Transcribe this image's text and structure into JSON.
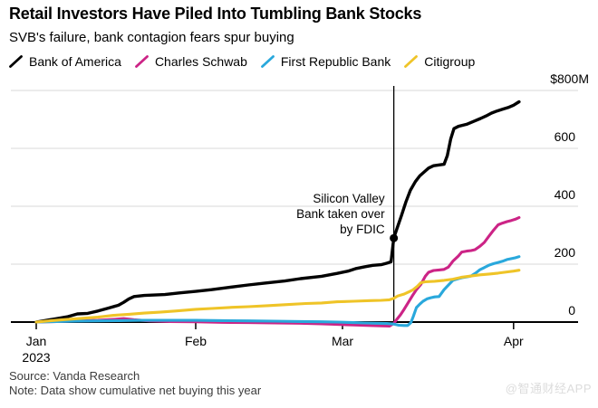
{
  "header": {
    "title": "Retail Investors Have Piled Into Tumbling Bank Stocks",
    "subtitle": "SVB's failure, bank contagion fears spur buying"
  },
  "legend": [
    {
      "label": "Bank of America",
      "color": "#000000"
    },
    {
      "label": "Charles Schwab",
      "color": "#cc2486"
    },
    {
      "label": "First Republic Bank",
      "color": "#29a8dc"
    },
    {
      "label": "Citigroup",
      "color": "#efc428"
    }
  ],
  "chart_data": {
    "type": "line",
    "title": "Retail Investors Have Piled Into Tumbling Bank Stocks",
    "subtitle": "SVB's failure, bank contagion fears spur buying",
    "unit": "USD millions, cumulative net buying",
    "x_unit": "days since Jan 1, 2023",
    "ylim": [
      -20,
      800
    ],
    "grid": "horizontal",
    "legend_position": "top",
    "y_axis": {
      "ticks": [
        {
          "value": 800,
          "label": "$800M"
        },
        {
          "value": 600,
          "label": "600"
        },
        {
          "value": 400,
          "label": "400"
        },
        {
          "value": 200,
          "label": "200"
        },
        {
          "value": 0,
          "label": "0"
        }
      ]
    },
    "x_axis": {
      "ticks": [
        {
          "label": "Jan",
          "day": 0
        },
        {
          "label": "Feb",
          "day": 31
        },
        {
          "label": "Mar",
          "day": 59
        },
        {
          "label": "Apr",
          "day": 90
        }
      ],
      "year_label": "2023"
    },
    "annotation": {
      "lines": [
        "Silicon Valley",
        "Bank taken over",
        "by FDIC"
      ],
      "event": "Silicon Valley Bank taken over by FDIC",
      "event_day": 68.3,
      "marker_value": 290
    },
    "series": [
      {
        "name": "Bank of America",
        "color": "#000000",
        "points": [
          [
            0,
            0
          ],
          [
            2,
            6
          ],
          [
            4,
            12
          ],
          [
            6,
            18
          ],
          [
            8,
            28
          ],
          [
            10,
            30
          ],
          [
            12,
            38
          ],
          [
            14,
            48
          ],
          [
            16,
            58
          ],
          [
            17,
            68
          ],
          [
            18,
            80
          ],
          [
            19,
            88
          ],
          [
            21,
            92
          ],
          [
            25,
            95
          ],
          [
            28,
            101
          ],
          [
            31,
            106
          ],
          [
            34,
            112
          ],
          [
            37,
            119
          ],
          [
            41,
            128
          ],
          [
            44,
            134
          ],
          [
            48,
            142
          ],
          [
            51,
            150
          ],
          [
            55,
            158
          ],
          [
            58,
            168
          ],
          [
            60,
            176
          ],
          [
            61.5,
            185
          ],
          [
            63,
            191
          ],
          [
            64.5,
            196
          ],
          [
            66,
            198
          ],
          [
            67,
            203
          ],
          [
            67.8,
            208
          ],
          [
            68.3,
            290
          ],
          [
            69,
            330
          ],
          [
            69.7,
            369
          ],
          [
            70.5,
            415
          ],
          [
            71.3,
            455
          ],
          [
            72.2,
            485
          ],
          [
            73,
            505
          ],
          [
            74,
            522
          ],
          [
            74.6,
            532
          ],
          [
            75.5,
            540
          ],
          [
            77.4,
            545
          ],
          [
            78,
            575
          ],
          [
            78.6,
            632
          ],
          [
            79.2,
            668
          ],
          [
            80,
            676
          ],
          [
            81.5,
            683
          ],
          [
            83,
            695
          ],
          [
            84,
            703
          ],
          [
            85,
            712
          ],
          [
            86,
            722
          ],
          [
            87,
            729
          ],
          [
            88,
            735
          ],
          [
            89,
            741
          ],
          [
            90,
            749
          ],
          [
            91,
            761
          ]
        ]
      },
      {
        "name": "Charles Schwab",
        "color": "#cc2486",
        "points": [
          [
            0,
            0
          ],
          [
            4,
            2
          ],
          [
            8,
            4
          ],
          [
            12,
            6
          ],
          [
            15,
            9
          ],
          [
            17,
            12
          ],
          [
            19,
            8
          ],
          [
            22,
            4
          ],
          [
            26,
            2
          ],
          [
            31,
            1
          ],
          [
            36,
            -1
          ],
          [
            41,
            -2
          ],
          [
            46,
            -3
          ],
          [
            51,
            -4
          ],
          [
            55,
            -6
          ],
          [
            58,
            -8
          ],
          [
            61,
            -10
          ],
          [
            64,
            -12
          ],
          [
            66,
            -13
          ],
          [
            67.5,
            -14
          ],
          [
            68.3,
            -5
          ],
          [
            68.8,
            8
          ],
          [
            69.5,
            25
          ],
          [
            70.2,
            45
          ],
          [
            71,
            70
          ],
          [
            71.8,
            95
          ],
          [
            72.4,
            112
          ],
          [
            73.2,
            130
          ],
          [
            74,
            158
          ],
          [
            74.6,
            172
          ],
          [
            75.5,
            178
          ],
          [
            76.5,
            180
          ],
          [
            77.4,
            182
          ],
          [
            78.2,
            190
          ],
          [
            79,
            210
          ],
          [
            80,
            228
          ],
          [
            80.6,
            242
          ],
          [
            81.5,
            245
          ],
          [
            82.3,
            247
          ],
          [
            83,
            250
          ],
          [
            83.9,
            262
          ],
          [
            84.7,
            275
          ],
          [
            85.6,
            298
          ],
          [
            86.4,
            318
          ],
          [
            87.2,
            336
          ],
          [
            88,
            342
          ],
          [
            88.8,
            347
          ],
          [
            89.6,
            351
          ],
          [
            90.3,
            355
          ],
          [
            91,
            361
          ]
        ]
      },
      {
        "name": "First Republic Bank",
        "color": "#29a8dc",
        "points": [
          [
            0,
            0
          ],
          [
            4,
            2
          ],
          [
            8,
            3
          ],
          [
            12,
            4
          ],
          [
            16,
            5
          ],
          [
            20,
            6
          ],
          [
            25,
            6
          ],
          [
            31,
            6
          ],
          [
            36,
            5
          ],
          [
            41,
            4
          ],
          [
            46,
            3
          ],
          [
            51,
            2
          ],
          [
            55,
            1
          ],
          [
            58,
            0
          ],
          [
            61,
            -2
          ],
          [
            63,
            -3
          ],
          [
            65,
            -4
          ],
          [
            67,
            -5
          ],
          [
            68.3,
            -7
          ],
          [
            69.2,
            -11
          ],
          [
            70.2,
            -12
          ],
          [
            70.8,
            -12
          ],
          [
            71.4,
            -2
          ],
          [
            71.8,
            18
          ],
          [
            72.4,
            50
          ],
          [
            73,
            62
          ],
          [
            73.6,
            72
          ],
          [
            74.3,
            80
          ],
          [
            75,
            84
          ],
          [
            75.7,
            87
          ],
          [
            76.5,
            88
          ],
          [
            77.4,
            112
          ],
          [
            79,
            144
          ],
          [
            80,
            150
          ],
          [
            80.6,
            153
          ],
          [
            81.5,
            156
          ],
          [
            82.3,
            159
          ],
          [
            83.2,
            170
          ],
          [
            83.9,
            181
          ],
          [
            84.7,
            188
          ],
          [
            85.6,
            197
          ],
          [
            86.4,
            202
          ],
          [
            87.2,
            206
          ],
          [
            88,
            210
          ],
          [
            88.8,
            216
          ],
          [
            89.6,
            219
          ],
          [
            90.3,
            222
          ],
          [
            91,
            226
          ]
        ]
      },
      {
        "name": "Citigroup",
        "color": "#efc428",
        "points": [
          [
            0,
            0
          ],
          [
            3,
            5
          ],
          [
            6,
            9
          ],
          [
            9,
            13
          ],
          [
            12,
            17
          ],
          [
            15,
            23
          ],
          [
            18,
            27
          ],
          [
            21,
            31
          ],
          [
            24,
            34
          ],
          [
            27,
            38
          ],
          [
            31,
            44
          ],
          [
            34,
            47
          ],
          [
            38,
            51
          ],
          [
            41,
            53
          ],
          [
            45,
            57
          ],
          [
            48,
            60
          ],
          [
            52,
            64
          ],
          [
            55,
            66
          ],
          [
            58,
            70
          ],
          [
            61,
            72
          ],
          [
            64,
            74
          ],
          [
            66,
            75
          ],
          [
            67.5,
            77
          ],
          [
            68.3,
            82
          ],
          [
            69,
            90
          ],
          [
            70.2,
            97
          ],
          [
            71,
            104
          ],
          [
            71.8,
            112
          ],
          [
            72.6,
            124
          ],
          [
            73.2,
            136
          ],
          [
            74,
            139
          ],
          [
            75.7,
            141
          ],
          [
            77.4,
            144
          ],
          [
            79,
            148
          ],
          [
            80.6,
            155
          ],
          [
            82.3,
            159
          ],
          [
            83.9,
            163
          ],
          [
            85.6,
            166
          ],
          [
            87.2,
            169
          ],
          [
            88.8,
            173
          ],
          [
            90,
            176
          ],
          [
            91,
            179
          ]
        ]
      }
    ]
  },
  "footer": {
    "source": "Source: Vanda Research",
    "note": "Note: Data show cumulative net buying this year"
  },
  "watermark": "@智通财经APP"
}
